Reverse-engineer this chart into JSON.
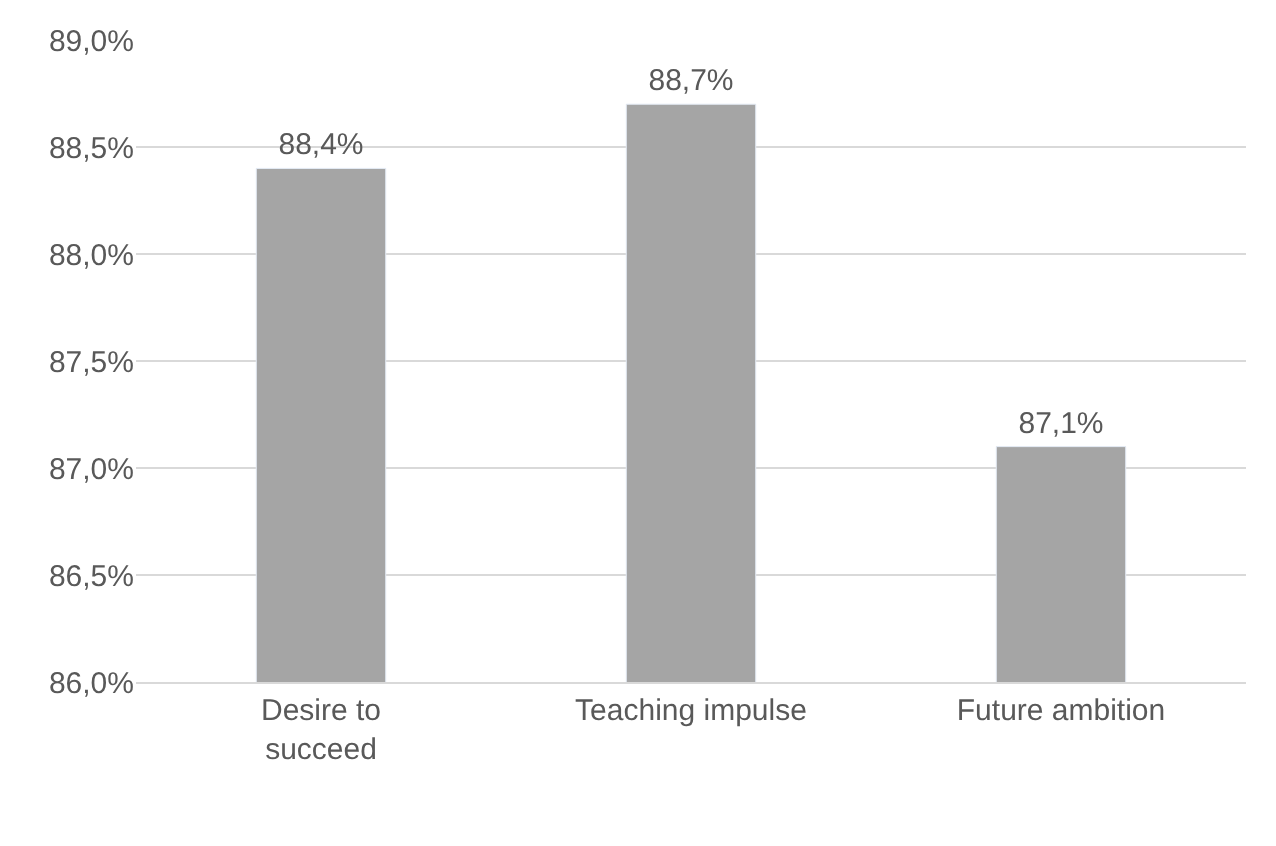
{
  "chart_data": {
    "type": "bar",
    "categories": [
      "Desire to succeed",
      "Teaching impulse",
      "Future ambition"
    ],
    "values": [
      88.4,
      88.7,
      87.1
    ],
    "value_labels": [
      "88,4%",
      "88,7%",
      "87,1%"
    ],
    "color": "#a5a5a5",
    "ylim": [
      86,
      89
    ],
    "yticks": [
      {
        "value": 86,
        "label": "86,0%"
      },
      {
        "value": 86.5,
        "label": "86,5%"
      },
      {
        "value": 87,
        "label": "87,0%"
      },
      {
        "value": 87.5,
        "label": "87,5%"
      },
      {
        "value": 88,
        "label": "88,0%"
      },
      {
        "value": 88.5,
        "label": "88,5%"
      },
      {
        "value": 89,
        "label": "89,0%"
      }
    ],
    "grid": "y",
    "legend": false
  }
}
